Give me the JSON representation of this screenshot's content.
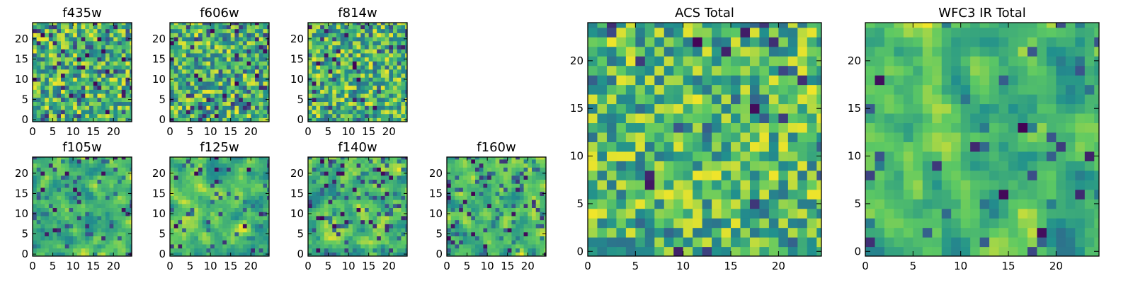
{
  "figure": {
    "colormap": [
      "#440154",
      "#3b528b",
      "#21908d",
      "#5dc963",
      "#fde725"
    ]
  },
  "chart_data": [
    {
      "type": "heatmap",
      "title": "f435w",
      "grid_size": 25,
      "xticks": [
        0,
        5,
        10,
        15,
        20
      ],
      "yticks": [
        0,
        5,
        10,
        15,
        20
      ],
      "seed": 11,
      "smooth": 0,
      "dark_fraction": 0.08
    },
    {
      "type": "heatmap",
      "title": "f606w",
      "grid_size": 25,
      "xticks": [
        0,
        5,
        10,
        15,
        20
      ],
      "yticks": [
        0,
        5,
        10,
        15,
        20
      ],
      "seed": 23,
      "smooth": 0,
      "dark_fraction": 0.08
    },
    {
      "type": "heatmap",
      "title": "f814w",
      "grid_size": 25,
      "xticks": [
        0,
        5,
        10,
        15,
        20
      ],
      "yticks": [
        0,
        5,
        10,
        15,
        20
      ],
      "seed": 37,
      "smooth": 0,
      "dark_fraction": 0.06
    },
    {
      "type": "heatmap",
      "title": "f105w",
      "grid_size": 25,
      "xticks": [
        0,
        5,
        10,
        15,
        20
      ],
      "yticks": [
        0,
        5,
        10,
        15,
        20
      ],
      "seed": 41,
      "smooth": 1,
      "dark_fraction": 0.05
    },
    {
      "type": "heatmap",
      "title": "f125w",
      "grid_size": 25,
      "xticks": [
        0,
        5,
        10,
        15,
        20
      ],
      "yticks": [
        0,
        5,
        10,
        15,
        20
      ],
      "seed": 53,
      "smooth": 1,
      "dark_fraction": 0.05
    },
    {
      "type": "heatmap",
      "title": "f140w",
      "grid_size": 25,
      "xticks": [
        0,
        5,
        10,
        15,
        20
      ],
      "yticks": [
        0,
        5,
        10,
        15,
        20
      ],
      "seed": 67,
      "smooth": 1,
      "dark_fraction": 0.06
    },
    {
      "type": "heatmap",
      "title": "f160w",
      "grid_size": 25,
      "xticks": [
        0,
        5,
        10,
        15,
        20
      ],
      "yticks": [
        0,
        5,
        10,
        15,
        20
      ],
      "seed": 79,
      "smooth": 1,
      "dark_fraction": 0.07
    },
    {
      "type": "heatmap",
      "title": "ACS Total",
      "grid_size": 25,
      "xticks": [
        0,
        5,
        10,
        15,
        20
      ],
      "yticks": [
        0,
        5,
        10,
        15,
        20
      ],
      "seed": 97,
      "smooth": 0,
      "dark_fraction": 0.03
    },
    {
      "type": "heatmap",
      "title": "WFC3 IR Total",
      "grid_size": 25,
      "xticks": [
        0,
        5,
        10,
        15,
        20
      ],
      "yticks": [
        0,
        5,
        10,
        15,
        20
      ],
      "seed": 131,
      "smooth": 1,
      "dark_fraction": 0.03
    }
  ]
}
